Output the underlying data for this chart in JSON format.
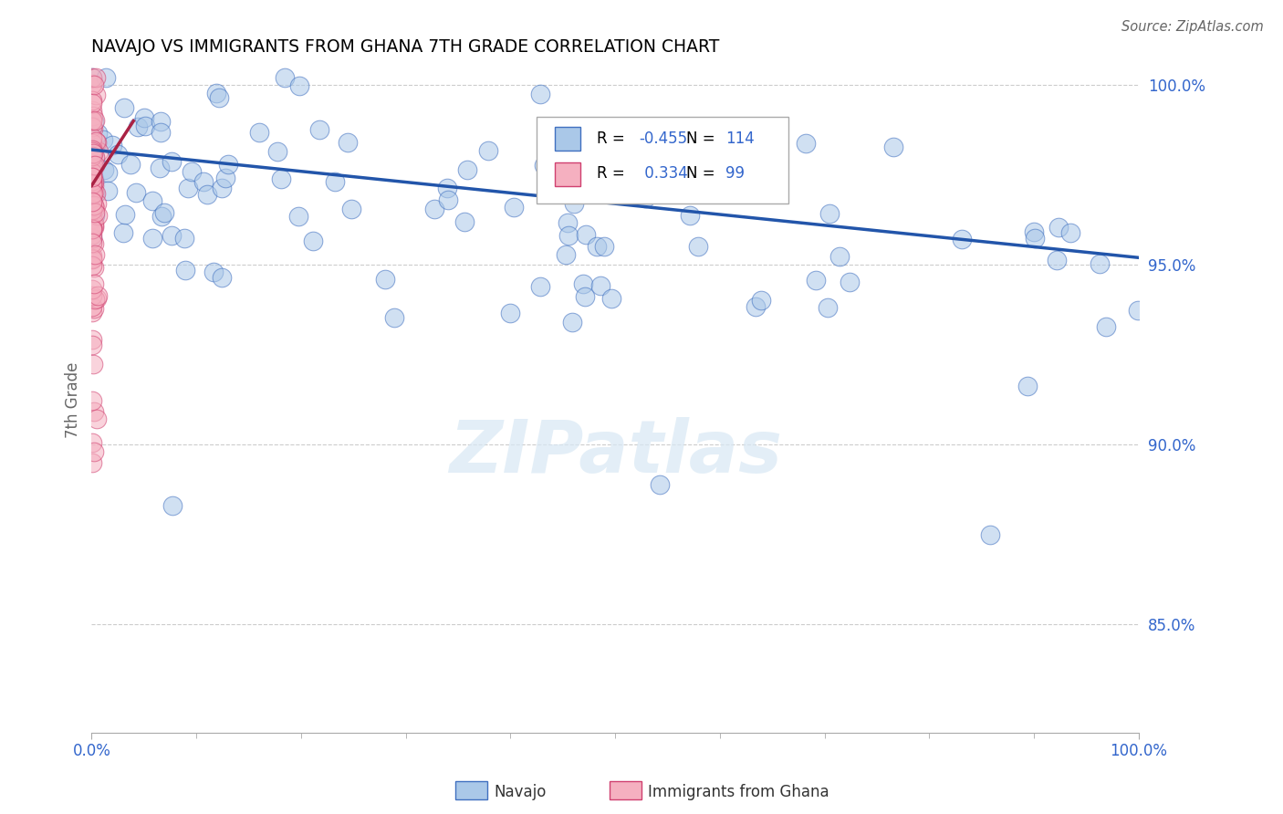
{
  "title": "NAVAJO VS IMMIGRANTS FROM GHANA 7TH GRADE CORRELATION CHART",
  "source": "Source: ZipAtlas.com",
  "ylabel": "7th Grade",
  "navajo_color": "#aac8e8",
  "ghana_color": "#f5b0c0",
  "navajo_edge_color": "#4070c0",
  "ghana_edge_color": "#d04070",
  "navajo_line_color": "#2255aa",
  "ghana_line_color": "#aa2244",
  "navajo_r": -0.455,
  "navajo_n": 114,
  "ghana_r": 0.334,
  "ghana_n": 99,
  "xlim": [
    0.0,
    1.0
  ],
  "ylim": [
    0.82,
    1.005
  ],
  "yticks": [
    0.85,
    0.9,
    0.95,
    1.0
  ],
  "ytick_labels": [
    "85.0%",
    "90.0%",
    "95.0%",
    "100.0%"
  ],
  "watermark": "ZIPatlas",
  "nav_line_x0": 0.0,
  "nav_line_y0": 0.982,
  "nav_line_x1": 1.0,
  "nav_line_y1": 0.952,
  "gha_line_x0": 0.0,
  "gha_line_y0": 0.972,
  "gha_line_x1": 0.04,
  "gha_line_y1": 0.99
}
